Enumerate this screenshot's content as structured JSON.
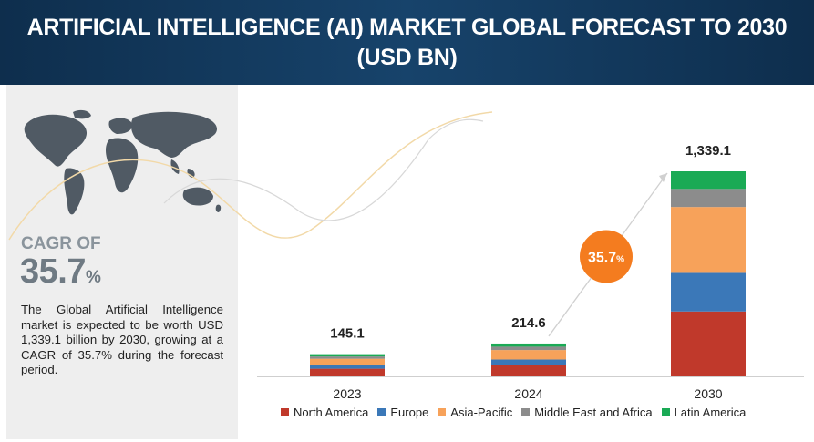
{
  "header": {
    "title_line1": "ARTIFICIAL INTELLIGENCE (AI) MARKET GLOBAL FORECAST TO 2030",
    "title_line2": "(USD BN)"
  },
  "sidebar": {
    "cagr_label": "CAGR OF",
    "cagr_value": "35.7",
    "cagr_unit": "%",
    "description": "The Global Artificial Intelligence market is expected to be worth USD 1,339.1 billion by 2030, growing at a CAGR of 35.7% during the forecast period."
  },
  "badge": {
    "value": "35.7",
    "unit": "%",
    "color": "#f47c1f"
  },
  "chart_data": {
    "type": "bar",
    "stacked": true,
    "categories": [
      "2023",
      "2024",
      "2030"
    ],
    "totals": [
      "145.1",
      "214.6",
      "1,339.1"
    ],
    "series": [
      {
        "name": "North America",
        "color": "#c0392b",
        "values": [
          50,
          73,
          424
        ]
      },
      {
        "name": "Europe",
        "color": "#3b78b8",
        "values": [
          25,
          37,
          252
        ]
      },
      {
        "name": "Asia-Pacific",
        "color": "#f7a25a",
        "values": [
          40,
          62,
          430
        ]
      },
      {
        "name": "Middle East and Africa",
        "color": "#8c8c8c",
        "values": [
          15,
          22,
          118
        ]
      },
      {
        "name": "Latin America",
        "color": "#1aaa55",
        "values": [
          15.1,
          20.6,
          115.1
        ]
      }
    ],
    "ylim": [
      0,
      1339.1
    ],
    "legend_position": "bottom"
  }
}
